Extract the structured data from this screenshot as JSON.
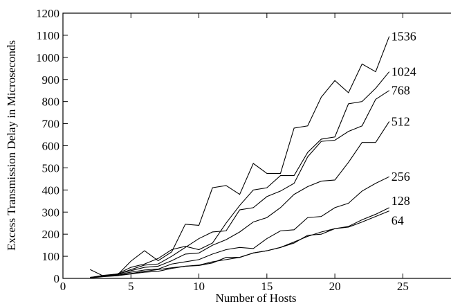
{
  "chart_data": {
    "type": "line",
    "title": "",
    "xlabel": "Number of Hosts",
    "ylabel": "Excess Transmission Delay in Microseconds",
    "xlim": [
      0,
      29
    ],
    "ylim": [
      0,
      1200
    ],
    "xticks": [
      0,
      5,
      10,
      15,
      20,
      25,
      29
    ],
    "yticks": [
      0,
      100,
      200,
      300,
      400,
      500,
      600,
      700,
      800,
      900,
      1000,
      1100,
      1200
    ],
    "grid": false,
    "legend": "labels at line ends (right)",
    "x": [
      2,
      3,
      4,
      5,
      6,
      7,
      8,
      9,
      10,
      11,
      12,
      13,
      14,
      15,
      16,
      17,
      18,
      19,
      20,
      21,
      22,
      23,
      24
    ],
    "series": [
      {
        "name": "64",
        "values": [
          2,
          8,
          12,
          20,
          28,
          32,
          45,
          55,
          58,
          70,
          95,
          95,
          115,
          125,
          140,
          160,
          195,
          200,
          225,
          232,
          255,
          280,
          305
        ]
      },
      {
        "name": "128",
        "values": [
          3,
          10,
          15,
          22,
          32,
          40,
          48,
          55,
          60,
          75,
          85,
          95,
          115,
          125,
          140,
          165,
          190,
          210,
          225,
          235,
          265,
          290,
          320
        ]
      },
      {
        "name": "256",
        "values": [
          5,
          10,
          18,
          28,
          38,
          42,
          65,
          75,
          85,
          110,
          130,
          140,
          135,
          180,
          215,
          220,
          275,
          280,
          320,
          340,
          395,
          430,
          460
        ]
      },
      {
        "name": "512",
        "values": [
          2,
          12,
          20,
          35,
          50,
          55,
          80,
          110,
          115,
          150,
          175,
          210,
          255,
          275,
          320,
          380,
          415,
          440,
          445,
          525,
          615,
          615,
          710
        ]
      },
      {
        "name": "768",
        "values": [
          3,
          12,
          18,
          40,
          60,
          65,
          100,
          140,
          180,
          210,
          215,
          310,
          320,
          370,
          395,
          430,
          550,
          620,
          625,
          665,
          690,
          810,
          850
        ]
      },
      {
        "name": "1024",
        "values": [
          4,
          14,
          20,
          50,
          65,
          90,
          130,
          145,
          130,
          160,
          250,
          330,
          400,
          410,
          465,
          465,
          570,
          630,
          640,
          790,
          800,
          860,
          935
        ]
      },
      {
        "name": "1536",
        "values": [
          40,
          10,
          15,
          78,
          125,
          80,
          120,
          245,
          240,
          410,
          420,
          380,
          520,
          475,
          475,
          680,
          690,
          820,
          895,
          840,
          970,
          935,
          1095
        ]
      }
    ],
    "series_labels": [
      "64",
      "128",
      "256",
      "512",
      "768",
      "1024",
      "1536"
    ]
  }
}
